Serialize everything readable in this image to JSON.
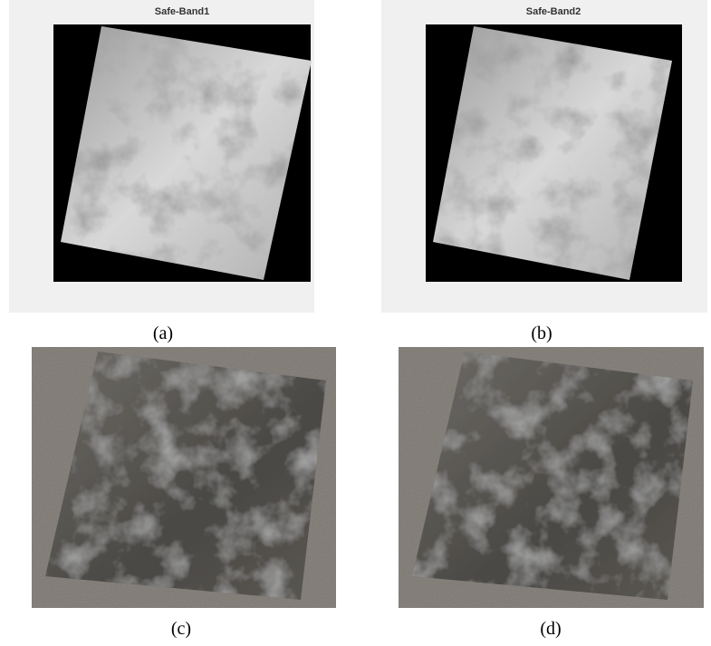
{
  "panels": [
    {
      "title": "Safe-Band1",
      "label": "(a)"
    },
    {
      "title": "Safe-Band2",
      "label": "(b)"
    },
    {
      "label": "(c)"
    },
    {
      "label": "(d)"
    }
  ]
}
